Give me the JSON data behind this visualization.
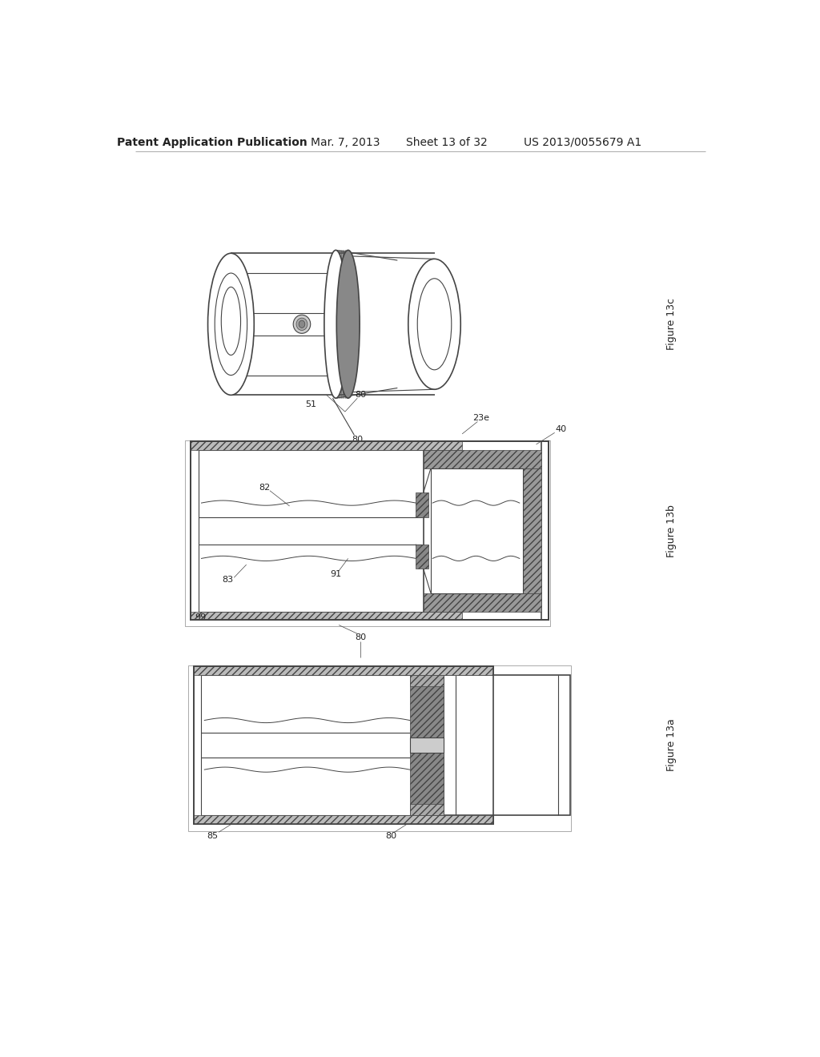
{
  "bg_color": "#ffffff",
  "header_text": "Patent Application Publication",
  "header_date": "Mar. 7, 2013",
  "header_sheet": "Sheet 13 of 32",
  "header_patent": "US 2013/0055679 A1",
  "lc": "#444444",
  "lc_dark": "#222222",
  "hatch_fc": "#999999",
  "hatch_fc2": "#bbbbbb"
}
